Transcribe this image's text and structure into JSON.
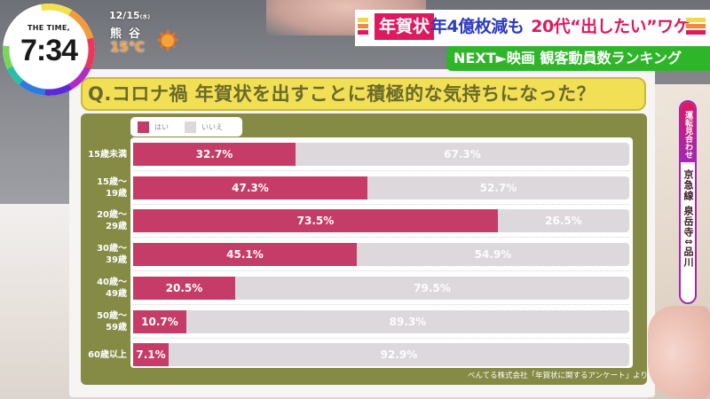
{
  "clock": {
    "brand": "THE TIME,",
    "time": "7:34"
  },
  "weather": {
    "date": "12/15",
    "weekday": "(水)",
    "city": "熊谷",
    "temperature": "15℃",
    "icon": "sun-icon"
  },
  "headline": {
    "tag": "年賀状",
    "main": "年4億枚減も",
    "highlight": "20代“出したい”ワケ",
    "next": "NEXT►映画 観客動員数ランキング",
    "colors": {
      "tag_bg": "#e0195e",
      "main": "#2e3bbf",
      "next_bg": "#2fb52a"
    }
  },
  "side_notice": {
    "status": "運転見合わせ",
    "detail": "京急線 泉岳寺⇕品川"
  },
  "board": {
    "question": "Q.コロナ禍 年賀状を出すことに積極的な気持ちになった？",
    "legend": [
      {
        "label": "はい",
        "color": "#c53c68"
      },
      {
        "label": "いいえ",
        "color": "#dcd8dc"
      }
    ],
    "source": "べんてる株式会社「年賀状に関するアンケート」より"
  },
  "chart_data": {
    "type": "bar",
    "orientation": "horizontal-stacked-100",
    "title": "Q.コロナ禍 年賀状を出すことに積極的な気持ちになった？",
    "categories": [
      "15歳未満",
      "15歳〜19歳",
      "20歳〜29歳",
      "30歳〜39歳",
      "40歳〜49歳",
      "50歳〜59歳",
      "60歳以上"
    ],
    "category_lines": [
      [
        "15歳未満"
      ],
      [
        "15歳〜",
        "19歳"
      ],
      [
        "20歳〜",
        "29歳"
      ],
      [
        "30歳〜",
        "39歳"
      ],
      [
        "40歳〜",
        "49歳"
      ],
      [
        "50歳〜",
        "59歳"
      ],
      [
        "60歳以上"
      ]
    ],
    "series": [
      {
        "name": "はい",
        "values": [
          32.7,
          47.3,
          73.5,
          45.1,
          20.5,
          10.7,
          7.1
        ],
        "color": "#c53c68"
      },
      {
        "name": "いいえ",
        "values": [
          67.3,
          52.7,
          26.5,
          54.9,
          79.5,
          89.3,
          92.9
        ],
        "color": "#dcd8dc"
      }
    ],
    "labels_yes": [
      "32.7%",
      "47.3%",
      "73.5%",
      "45.1%",
      "20.5%",
      "10.7%",
      "7.1%"
    ],
    "labels_no": [
      "67.3%",
      "52.7%",
      "26.5%",
      "54.9%",
      "79.5%",
      "89.3%",
      "92.9%"
    ],
    "xlim": [
      0,
      100
    ],
    "unit": "%",
    "grid": false,
    "legend_position": "top-left",
    "source": "べんてる株式会社「年賀状に関するアンケート」より"
  }
}
